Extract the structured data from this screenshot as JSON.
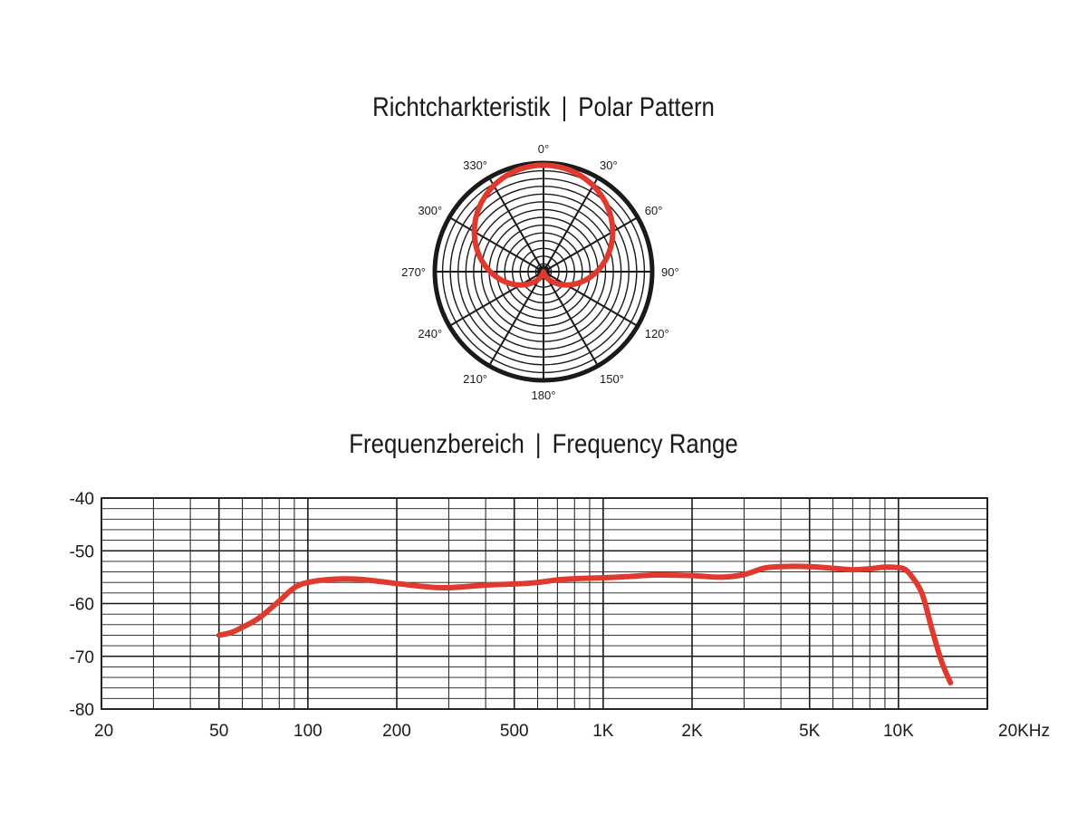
{
  "polar": {
    "title_de": "Richtcharkteristik",
    "title_sep": "|",
    "title_en": "Polar Pattern",
    "angle_labels": [
      "0°",
      "30°",
      "60°",
      "90°",
      "120°",
      "150°",
      "180°",
      "210°",
      "240°",
      "270°",
      "300°",
      "330°"
    ],
    "pattern": "cardioid",
    "colors": {
      "grid": "#1a1a1a",
      "curve": "#e03a2f"
    }
  },
  "frequency": {
    "title_de": "Frequenzbereich",
    "title_sep": "|",
    "title_en": "Frequency Range"
  },
  "chart_data": [
    {
      "type": "polar",
      "title": "Richtcharkteristik | Polar Pattern",
      "angles_deg": [
        0,
        30,
        60,
        90,
        120,
        150,
        180,
        210,
        240,
        270,
        300,
        330
      ],
      "angle_labels": [
        "0°",
        "30°",
        "60°",
        "90°",
        "120°",
        "150°",
        "180°",
        "210°",
        "240°",
        "270°",
        "300°",
        "330°"
      ],
      "series": [
        {
          "pattern": "cardioid",
          "color": "#e03a2f"
        }
      ]
    },
    {
      "type": "line",
      "title": "Frequenzbereich | Frequency Range",
      "xscale": "log",
      "xlim": [
        20,
        20000
      ],
      "ylim": [
        -80,
        -40
      ],
      "xticks": [
        20,
        50,
        100,
        200,
        500,
        1000,
        2000,
        5000,
        10000,
        20000
      ],
      "xtick_labels": [
        "20",
        "50",
        "100",
        "200",
        "500",
        "1K",
        "2K",
        "5K",
        "10K",
        "20KHz"
      ],
      "yticks": [
        -40,
        -50,
        -60,
        -70,
        -80
      ],
      "ytick_labels": [
        "-40",
        "-50",
        "-60",
        "-70",
        "-80"
      ],
      "grid": true,
      "series": [
        {
          "color": "#e03a2f",
          "x": [
            50,
            55,
            60,
            65,
            70,
            80,
            90,
            100,
            120,
            150,
            200,
            250,
            300,
            400,
            500,
            600,
            700,
            800,
            1000,
            1200,
            1500,
            2000,
            2500,
            3000,
            3500,
            4000,
            5000,
            6000,
            7000,
            8000,
            9000,
            10000,
            10500,
            11000,
            12000,
            13000,
            14000,
            15000
          ],
          "y": [
            -66,
            -65.5,
            -64.5,
            -63.5,
            -62.3,
            -59.5,
            -57,
            -56,
            -55.4,
            -55.4,
            -56.2,
            -56.8,
            -57,
            -56.5,
            -56.3,
            -56,
            -55.5,
            -55.3,
            -55.1,
            -54.9,
            -54.6,
            -54.7,
            -55,
            -54.5,
            -53.3,
            -53,
            -53,
            -53.3,
            -53.6,
            -53.4,
            -53.1,
            -53.2,
            -53.5,
            -54.6,
            -58,
            -65,
            -71,
            -75
          ]
        }
      ]
    }
  ]
}
